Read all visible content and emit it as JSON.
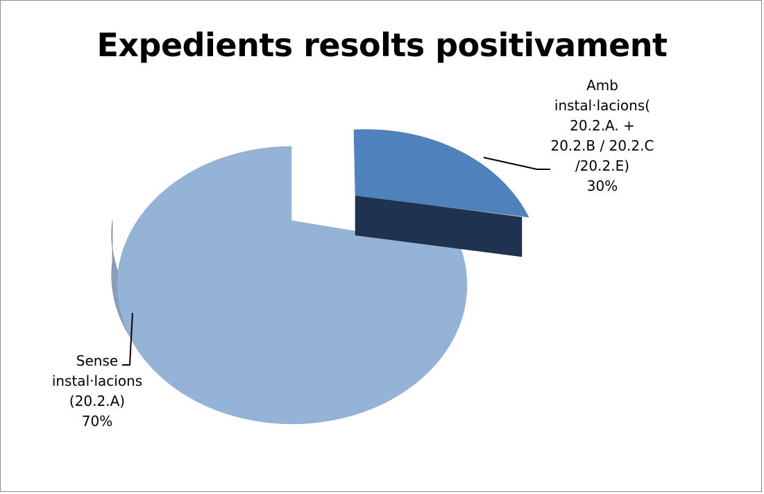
{
  "chart_data": {
    "type": "pie",
    "title": "Expedients resolts positivament",
    "style": "3d-exploded",
    "slices": [
      {
        "name": "Amb instal·lacions( 20.2.A. + 20.2.B / 20.2.C /20.2.E)",
        "label_lines": [
          "Amb",
          "instal·lacions(",
          "20.2.A. +",
          "20.2.B / 20.2.C",
          "/20.2.E)"
        ],
        "value": 30,
        "percent_label": "30%",
        "color": "#4f81bd",
        "side_color": "#1f3350",
        "exploded": true
      },
      {
        "name": "Sense instal·lacions (20.2.A)",
        "label_lines": [
          "Sense",
          "instal·lacions",
          "(20.2.A)"
        ],
        "value": 70,
        "percent_label": "70%",
        "color": "#95b3d7",
        "side_color": "#3c4a5e",
        "exploded": false
      }
    ]
  }
}
